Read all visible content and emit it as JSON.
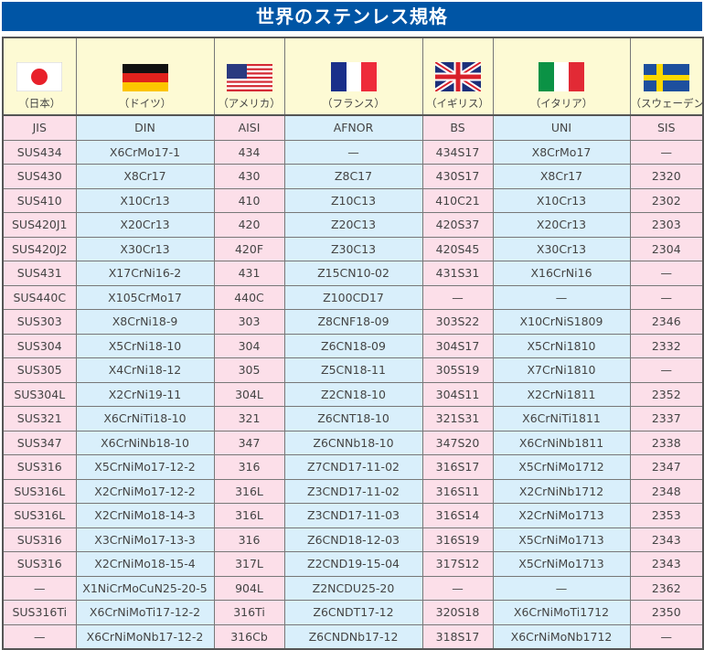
{
  "title": "世界のステンレス規格",
  "colors": {
    "title_bar": "#0055a5",
    "pink_column": "#fcdfe9",
    "blue_column": "#d9effb",
    "header_bg": "#fdfad4"
  },
  "columns": [
    {
      "country": "（日本）",
      "flag": "japan-flag-icon",
      "standard": "JIS"
    },
    {
      "country": "（ドイツ）",
      "flag": "germany-flag-icon",
      "standard": "DIN"
    },
    {
      "country": "（アメリカ）",
      "flag": "usa-flag-icon",
      "standard": "AISI"
    },
    {
      "country": "（フランス）",
      "flag": "france-flag-icon",
      "standard": "AFNOR"
    },
    {
      "country": "（イギリス）",
      "flag": "uk-flag-icon",
      "standard": "BS"
    },
    {
      "country": "（イタリア）",
      "flag": "italy-flag-icon",
      "standard": "UNI"
    },
    {
      "country": "（スウェーデン）",
      "flag": "sweden-flag-icon",
      "standard": "SIS"
    }
  ],
  "rows": [
    [
      "SUS434",
      "X6CrMo17-1",
      "434",
      "—",
      "434S17",
      "X8CrMo17",
      "—"
    ],
    [
      "SUS430",
      "X8Cr17",
      "430",
      "Z8C17",
      "430S17",
      "X8Cr17",
      "2320"
    ],
    [
      "SUS410",
      "X10Cr13",
      "410",
      "Z10C13",
      "410C21",
      "X10Cr13",
      "2302"
    ],
    [
      "SUS420J1",
      "X20Cr13",
      "420",
      "Z20C13",
      "420S37",
      "X20Cr13",
      "2303"
    ],
    [
      "SUS420J2",
      "X30Cr13",
      "420F",
      "Z30C13",
      "420S45",
      "X30Cr13",
      "2304"
    ],
    [
      "SUS431",
      "X17CrNi16-2",
      "431",
      "Z15CN10-02",
      "431S31",
      "X16CrNi16",
      "—"
    ],
    [
      "SUS440C",
      "X105CrMo17",
      "440C",
      "Z100CD17",
      "—",
      "—",
      "—"
    ],
    [
      "SUS303",
      "X8CrNi18-9",
      "303",
      "Z8CNF18-09",
      "303S22",
      "X10CrNiS1809",
      "2346"
    ],
    [
      "SUS304",
      "X5CrNi18-10",
      "304",
      "Z6CN18-09",
      "304S17",
      "X5CrNi1810",
      "2332"
    ],
    [
      "SUS305",
      "X4CrNi18-12",
      "305",
      "Z5CN18-11",
      "305S19",
      "X7CrNi1810",
      "—"
    ],
    [
      "SUS304L",
      "X2CrNi19-11",
      "304L",
      "Z2CN18-10",
      "304S11",
      "X2CrNi1811",
      "2352"
    ],
    [
      "SUS321",
      "X6CrNiTi18-10",
      "321",
      "Z6CNT18-10",
      "321S31",
      "X6CrNiTi1811",
      "2337"
    ],
    [
      "SUS347",
      "X6CrNiNb18-10",
      "347",
      "Z6CNNb18-10",
      "347S20",
      "X6CrNiNb1811",
      "2338"
    ],
    [
      "SUS316",
      "X5CrNiMo17-12-2",
      "316",
      "Z7CND17-11-02",
      "316S17",
      "X5CrNiMo1712",
      "2347"
    ],
    [
      "SUS316L",
      "X2CrNiMo17-12-2",
      "316L",
      "Z3CND17-11-02",
      "316S11",
      "X2CrNiNb1712",
      "2348"
    ],
    [
      "SUS316L",
      "X2CrNiMo18-14-3",
      "316L",
      "Z3CND17-11-03",
      "316S14",
      "X2CrNiMo1713",
      "2353"
    ],
    [
      "SUS316",
      "X3CrNiMo17-13-3",
      "316",
      "Z6CND18-12-03",
      "316S19",
      "X5CrNiMo1713",
      "2343"
    ],
    [
      "SUS316",
      "X2CrNiMo18-15-4",
      "317L",
      "Z2CND19-15-04",
      "317S12",
      "X5CrNiMo1713",
      "2343"
    ],
    [
      "—",
      "X1NiCrMoCuN25-20-5",
      "904L",
      "Z2NCDU25-20",
      "—",
      "—",
      "2362"
    ],
    [
      "SUS316Ti",
      "X6CrNiMoTi17-12-2",
      "316Ti",
      "Z6CNDT17-12",
      "320S18",
      "X6CrNiMoTi1712",
      "2350"
    ],
    [
      "—",
      "X6CrNiMoNb17-12-2",
      "316Cb",
      "Z6CNDNb17-12",
      "318S17",
      "X6CrNiMoNb1712",
      "—"
    ]
  ]
}
